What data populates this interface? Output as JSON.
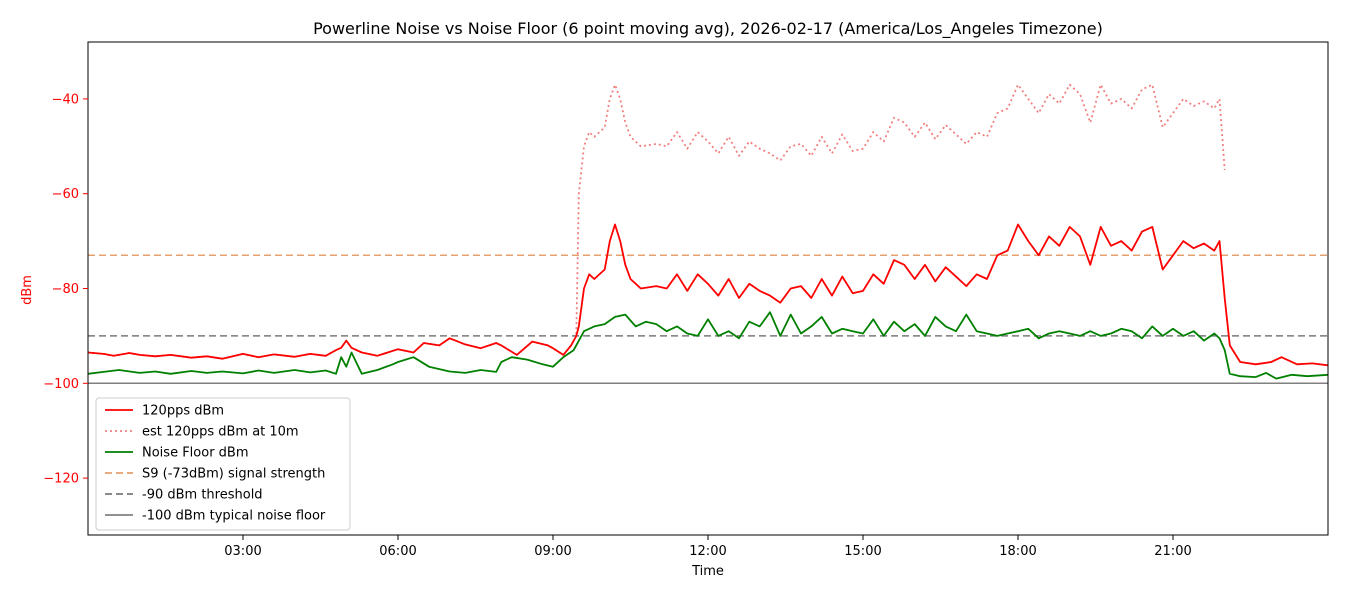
{
  "chart_data": {
    "type": "line",
    "title": "Powerline Noise vs Noise Floor (6 point moving avg), 2026-02-17 (America/Los_Angeles Timezone)",
    "xlabel": "Time",
    "ylabel": "dBm",
    "xlim": [
      0.0,
      24.0
    ],
    "ylim": [
      -132,
      -28
    ],
    "xticks": [
      {
        "v": 3,
        "label": "03:00"
      },
      {
        "v": 6,
        "label": "06:00"
      },
      {
        "v": 9,
        "label": "09:00"
      },
      {
        "v": 12,
        "label": "12:00"
      },
      {
        "v": 15,
        "label": "15:00"
      },
      {
        "v": 18,
        "label": "18:00"
      },
      {
        "v": 21,
        "label": "21:00"
      }
    ],
    "yticks": [
      {
        "v": -40,
        "label": "−40"
      },
      {
        "v": -60,
        "label": "−60"
      },
      {
        "v": -80,
        "label": "−80"
      },
      {
        "v": -100,
        "label": "−100"
      },
      {
        "v": -120,
        "label": "−120"
      }
    ],
    "grid": false,
    "legend_position": "lower-left",
    "series": [
      {
        "name": "120pps dBm",
        "color": "#ff0000",
        "style": "solid",
        "x": [
          0,
          0.3,
          0.5,
          0.8,
          1.0,
          1.3,
          1.6,
          2.0,
          2.3,
          2.6,
          3.0,
          3.3,
          3.6,
          4.0,
          4.3,
          4.6,
          4.8,
          4.9,
          5.0,
          5.1,
          5.3,
          5.6,
          6.0,
          6.3,
          6.5,
          6.8,
          7.0,
          7.3,
          7.6,
          7.9,
          8.0,
          8.3,
          8.6,
          8.9,
          9.0,
          9.2,
          9.35,
          9.45,
          9.5,
          9.6,
          9.7,
          9.8,
          10.0,
          10.1,
          10.2,
          10.3,
          10.4,
          10.5,
          10.7,
          11.0,
          11.2,
          11.4,
          11.6,
          11.8,
          12.0,
          12.2,
          12.4,
          12.6,
          12.8,
          13.0,
          13.2,
          13.4,
          13.6,
          13.8,
          14.0,
          14.2,
          14.4,
          14.6,
          14.8,
          15.0,
          15.2,
          15.4,
          15.6,
          15.8,
          16.0,
          16.2,
          16.4,
          16.6,
          16.8,
          17.0,
          17.2,
          17.4,
          17.6,
          17.8,
          18.0,
          18.2,
          18.4,
          18.6,
          18.8,
          19.0,
          19.2,
          19.4,
          19.6,
          19.8,
          20.0,
          20.2,
          20.4,
          20.6,
          20.8,
          21.0,
          21.2,
          21.4,
          21.6,
          21.8,
          21.9,
          22.0,
          22.1,
          22.3,
          22.6,
          22.9,
          23.1,
          23.4,
          23.7,
          24.0
        ],
        "y": [
          -93.5,
          -93.8,
          -94.2,
          -93.6,
          -94.0,
          -94.3,
          -94.0,
          -94.6,
          -94.3,
          -94.8,
          -93.8,
          -94.5,
          -93.9,
          -94.4,
          -93.8,
          -94.2,
          -93.0,
          -92.5,
          -91.0,
          -92.5,
          -93.5,
          -94.2,
          -92.8,
          -93.5,
          -91.5,
          -92.0,
          -90.5,
          -91.8,
          -92.6,
          -91.5,
          -92.0,
          -94.0,
          -91.2,
          -92.0,
          -92.6,
          -94.0,
          -92.0,
          -90.0,
          -88.0,
          -80.0,
          -77.0,
          -78.0,
          -76.0,
          -70.0,
          -66.5,
          -70.0,
          -75.0,
          -78.0,
          -80.0,
          -79.5,
          -80.0,
          -77.0,
          -80.5,
          -77.0,
          -79.0,
          -81.5,
          -78.0,
          -82.0,
          -79.0,
          -80.5,
          -81.5,
          -83.0,
          -80.0,
          -79.5,
          -82.0,
          -78.0,
          -81.5,
          -77.5,
          -81.0,
          -80.5,
          -77.0,
          -79.0,
          -74.0,
          -75.0,
          -78.0,
          -75.0,
          -78.5,
          -75.5,
          -77.5,
          -79.5,
          -77.0,
          -78.0,
          -73.0,
          -72.0,
          -66.5,
          -70.0,
          -73.0,
          -69.0,
          -71.0,
          -67.0,
          -69.0,
          -75.0,
          -67.0,
          -71.0,
          -70.0,
          -72.0,
          -68.0,
          -67.0,
          -76.0,
          -73.0,
          -70.0,
          -71.5,
          -70.5,
          -72.0,
          -70.0,
          -82.0,
          -92.0,
          -95.5,
          -96.0,
          -95.5,
          -94.5,
          -96.0,
          -95.8,
          -96.2
        ]
      },
      {
        "name": "est 120pps dBm at 10m",
        "color": "#f08080",
        "style": "dotted",
        "x": [
          0,
          0.3,
          0.5,
          0.8,
          1.0,
          1.3,
          1.6,
          2.0,
          2.3,
          2.6,
          3.0,
          3.3,
          3.6,
          4.0,
          4.3,
          4.6,
          4.8,
          4.9,
          5.0,
          5.1,
          5.3,
          5.6,
          6.0,
          6.3,
          6.5,
          6.8,
          7.0,
          7.3,
          7.6,
          7.9,
          8.0,
          8.3,
          8.6,
          8.9,
          9.0,
          9.2,
          9.35,
          9.45,
          9.5,
          9.6,
          9.7,
          9.8,
          10.0,
          10.1,
          10.2,
          10.3,
          10.4,
          10.5,
          10.7,
          11.0,
          11.2,
          11.4,
          11.6,
          11.8,
          12.0,
          12.2,
          12.4,
          12.6,
          12.8,
          13.0,
          13.2,
          13.4,
          13.6,
          13.8,
          14.0,
          14.2,
          14.4,
          14.6,
          14.8,
          15.0,
          15.2,
          15.4,
          15.6,
          15.8,
          16.0,
          16.2,
          16.4,
          16.6,
          16.8,
          17.0,
          17.2,
          17.4,
          17.6,
          17.8,
          18.0,
          18.2,
          18.4,
          18.6,
          18.8,
          19.0,
          19.2,
          19.4,
          19.6,
          19.8,
          20.0,
          20.2,
          20.4,
          20.6,
          20.8,
          21.0,
          21.2,
          21.4,
          21.6,
          21.8,
          21.9,
          22.0
        ],
        "y": [
          -93.5,
          -93.8,
          -94.2,
          -93.6,
          -94.0,
          -94.3,
          -94.0,
          -94.6,
          -94.3,
          -94.8,
          -93.8,
          -94.5,
          -93.9,
          -94.4,
          -93.8,
          -94.2,
          -93.0,
          -92.5,
          -91.0,
          -92.5,
          -93.5,
          -94.2,
          -92.8,
          -93.5,
          -91.5,
          -92.0,
          -90.5,
          -91.8,
          -92.6,
          -91.5,
          -92.0,
          -94.0,
          -91.2,
          -92.0,
          -92.6,
          -94.0,
          -92.0,
          -90.0,
          -60.0,
          -50.0,
          -47.0,
          -48.0,
          -46.0,
          -40.0,
          -37.0,
          -40.0,
          -45.0,
          -48.0,
          -50.0,
          -49.5,
          -50.0,
          -47.0,
          -50.5,
          -47.0,
          -49.0,
          -51.5,
          -48.0,
          -52.0,
          -49.0,
          -50.5,
          -51.5,
          -53.0,
          -50.0,
          -49.5,
          -52.0,
          -48.0,
          -51.5,
          -47.5,
          -51.0,
          -50.5,
          -47.0,
          -49.0,
          -44.0,
          -45.0,
          -48.0,
          -45.0,
          -48.5,
          -45.5,
          -47.5,
          -49.5,
          -47.0,
          -48.0,
          -43.0,
          -42.0,
          -37.0,
          -40.0,
          -43.0,
          -39.0,
          -41.0,
          -37.0,
          -39.0,
          -45.0,
          -37.0,
          -41.0,
          -40.0,
          -42.0,
          -38.0,
          -37.0,
          -46.0,
          -43.0,
          -40.0,
          -41.5,
          -40.5,
          -42.0,
          -40.0,
          -55.0
        ]
      },
      {
        "name": "Noise Floor dBm",
        "color": "#008000",
        "style": "solid",
        "x": [
          0,
          0.3,
          0.6,
          1.0,
          1.3,
          1.6,
          2.0,
          2.3,
          2.6,
          3.0,
          3.3,
          3.6,
          4.0,
          4.3,
          4.6,
          4.8,
          4.9,
          5.0,
          5.1,
          5.3,
          5.6,
          5.9,
          6.0,
          6.3,
          6.6,
          7.0,
          7.3,
          7.6,
          7.9,
          8.0,
          8.2,
          8.5,
          8.8,
          9.0,
          9.2,
          9.4,
          9.6,
          9.8,
          10.0,
          10.2,
          10.4,
          10.6,
          10.8,
          11.0,
          11.2,
          11.4,
          11.6,
          11.8,
          12.0,
          12.2,
          12.4,
          12.6,
          12.8,
          13.0,
          13.2,
          13.4,
          13.6,
          13.8,
          14.0,
          14.2,
          14.4,
          14.6,
          14.8,
          15.0,
          15.2,
          15.4,
          15.6,
          15.8,
          16.0,
          16.2,
          16.4,
          16.6,
          16.8,
          17.0,
          17.2,
          17.4,
          17.6,
          17.8,
          18.0,
          18.2,
          18.4,
          18.6,
          18.8,
          19.0,
          19.2,
          19.4,
          19.6,
          19.8,
          20.0,
          20.2,
          20.4,
          20.6,
          20.8,
          21.0,
          21.2,
          21.4,
          21.6,
          21.8,
          21.9,
          22.0,
          22.1,
          22.3,
          22.6,
          22.8,
          23.0,
          23.3,
          23.6,
          24.0
        ],
        "y": [
          -98.0,
          -97.6,
          -97.2,
          -97.8,
          -97.5,
          -98.0,
          -97.4,
          -97.8,
          -97.5,
          -97.9,
          -97.3,
          -97.8,
          -97.2,
          -97.7,
          -97.3,
          -98.0,
          -94.5,
          -96.5,
          -93.5,
          -98.0,
          -97.2,
          -96.0,
          -95.5,
          -94.5,
          -96.5,
          -97.5,
          -97.8,
          -97.2,
          -97.6,
          -95.5,
          -94.5,
          -95.0,
          -96.0,
          -96.5,
          -94.5,
          -93.0,
          -89.0,
          -88.0,
          -87.5,
          -86.0,
          -85.5,
          -88.0,
          -87.0,
          -87.5,
          -89.0,
          -88.0,
          -89.5,
          -90.0,
          -86.5,
          -90.0,
          -89.0,
          -90.5,
          -87.0,
          -88.0,
          -85.0,
          -90.0,
          -85.5,
          -89.5,
          -88.0,
          -86.0,
          -89.5,
          -88.5,
          -89.0,
          -89.5,
          -86.5,
          -90.0,
          -87.0,
          -89.0,
          -87.5,
          -90.0,
          -86.0,
          -88.0,
          -89.0,
          -85.5,
          -89.0,
          -89.5,
          -90.0,
          -89.5,
          -89.0,
          -88.5,
          -90.5,
          -89.5,
          -89.0,
          -89.5,
          -90.0,
          -89.0,
          -90.0,
          -89.5,
          -88.5,
          -89.0,
          -90.5,
          -88.0,
          -90.0,
          -88.5,
          -90.0,
          -89.0,
          -91.0,
          -89.5,
          -90.5,
          -93.0,
          -98.0,
          -98.5,
          -98.7,
          -97.8,
          -99.0,
          -98.2,
          -98.5,
          -98.2
        ]
      },
      {
        "name": "S9 (-73dBm) signal strength",
        "color": "#e5a06e",
        "style": "dashed",
        "x": [
          0,
          24
        ],
        "y": [
          -73,
          -73
        ]
      },
      {
        "name": "-90 dBm threshold",
        "color": "#7a7a7a",
        "style": "dashed",
        "x": [
          0,
          24
        ],
        "y": [
          -90,
          -90
        ]
      },
      {
        "name": "-100 dBm typical noise floor",
        "color": "#808080",
        "style": "solid",
        "x": [
          0,
          24
        ],
        "y": [
          -100,
          -100
        ]
      }
    ]
  }
}
